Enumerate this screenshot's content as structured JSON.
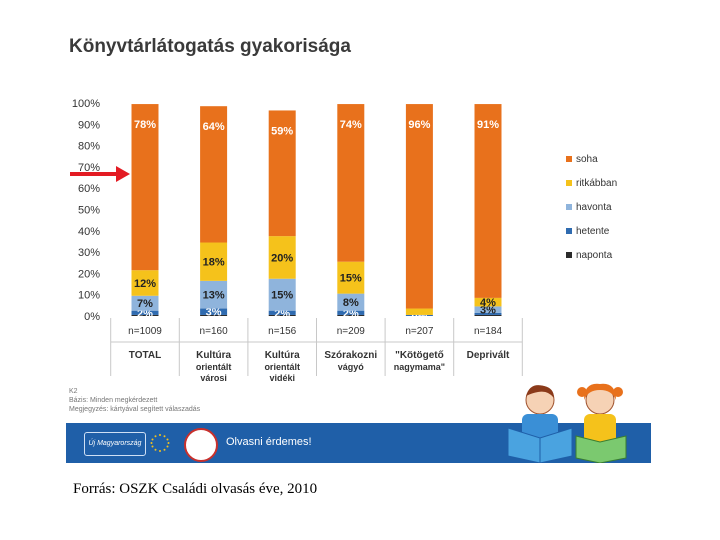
{
  "title": "Könyvtárlátogatás gyakorisága",
  "source": "Forrás: OSZK Családi olvasás éve, 2010",
  "notes": [
    "K2",
    "Bázis: Minden megkérdezett",
    "Megjegyzés: kártyával segített válaszadás"
  ],
  "footer": {
    "logo_left": "Új Magyarország",
    "slogan": "Olvasni érdemes!"
  },
  "chart_data": {
    "type": "bar",
    "stacked": true,
    "ylim": [
      0,
      100
    ],
    "yticks": [
      "0%",
      "10%",
      "20%",
      "30%",
      "40%",
      "50%",
      "60%",
      "70%",
      "80%",
      "90%",
      "100%"
    ],
    "categories": [
      {
        "label": "TOTAL",
        "sublabel": "",
        "n": "n=1009"
      },
      {
        "label": "Kultúra",
        "sublabel": "orientált városi",
        "n": "n=160"
      },
      {
        "label": "Kultúra",
        "sublabel": "orientált vidéki",
        "n": "n=156"
      },
      {
        "label": "Szórakozni",
        "sublabel": "vágyó",
        "n": "n=209"
      },
      {
        "label": "\"Kötögető",
        "sublabel": "nagymama\"",
        "n": "n=207"
      },
      {
        "label": "Deprivált",
        "sublabel": "",
        "n": "n=184"
      }
    ],
    "series": [
      {
        "name": "naponta",
        "color": "#2b2b2b",
        "values": [
          0.5,
          0.5,
          0.5,
          0.5,
          0,
          0.5
        ],
        "labels": [
          "",
          "",
          "",
          "",
          "",
          ""
        ]
      },
      {
        "name": "hetente",
        "color": "#2f6bb0",
        "values": [
          2,
          3,
          2,
          2,
          0.5,
          1
        ],
        "labels": [
          "2%",
          "3%",
          "2%",
          "2%",
          "",
          ""
        ]
      },
      {
        "name": "havonta",
        "color": "#8fb4dc",
        "values": [
          7,
          13,
          15,
          8,
          0,
          3
        ],
        "labels": [
          "7%",
          "13%",
          "15%",
          "8%",
          "0%",
          "3%"
        ]
      },
      {
        "name": "ritkábban",
        "color": "#f5c21b",
        "values": [
          12,
          18,
          20,
          15,
          3,
          4
        ],
        "labels": [
          "12%",
          "18%",
          "20%",
          "15%",
          "",
          "4%"
        ]
      },
      {
        "name": "soha",
        "color": "#e8711c",
        "values": [
          78,
          64,
          59,
          74,
          96,
          91
        ],
        "labels": [
          "78%",
          "64%",
          "59%",
          "74%",
          "96%",
          "91%"
        ]
      }
    ],
    "legend_order": [
      "soha",
      "ritkábban",
      "havonta",
      "hetente",
      "naponta"
    ],
    "legend_position": "right",
    "annotation": "red arrow pointing at TOTAL bar"
  }
}
